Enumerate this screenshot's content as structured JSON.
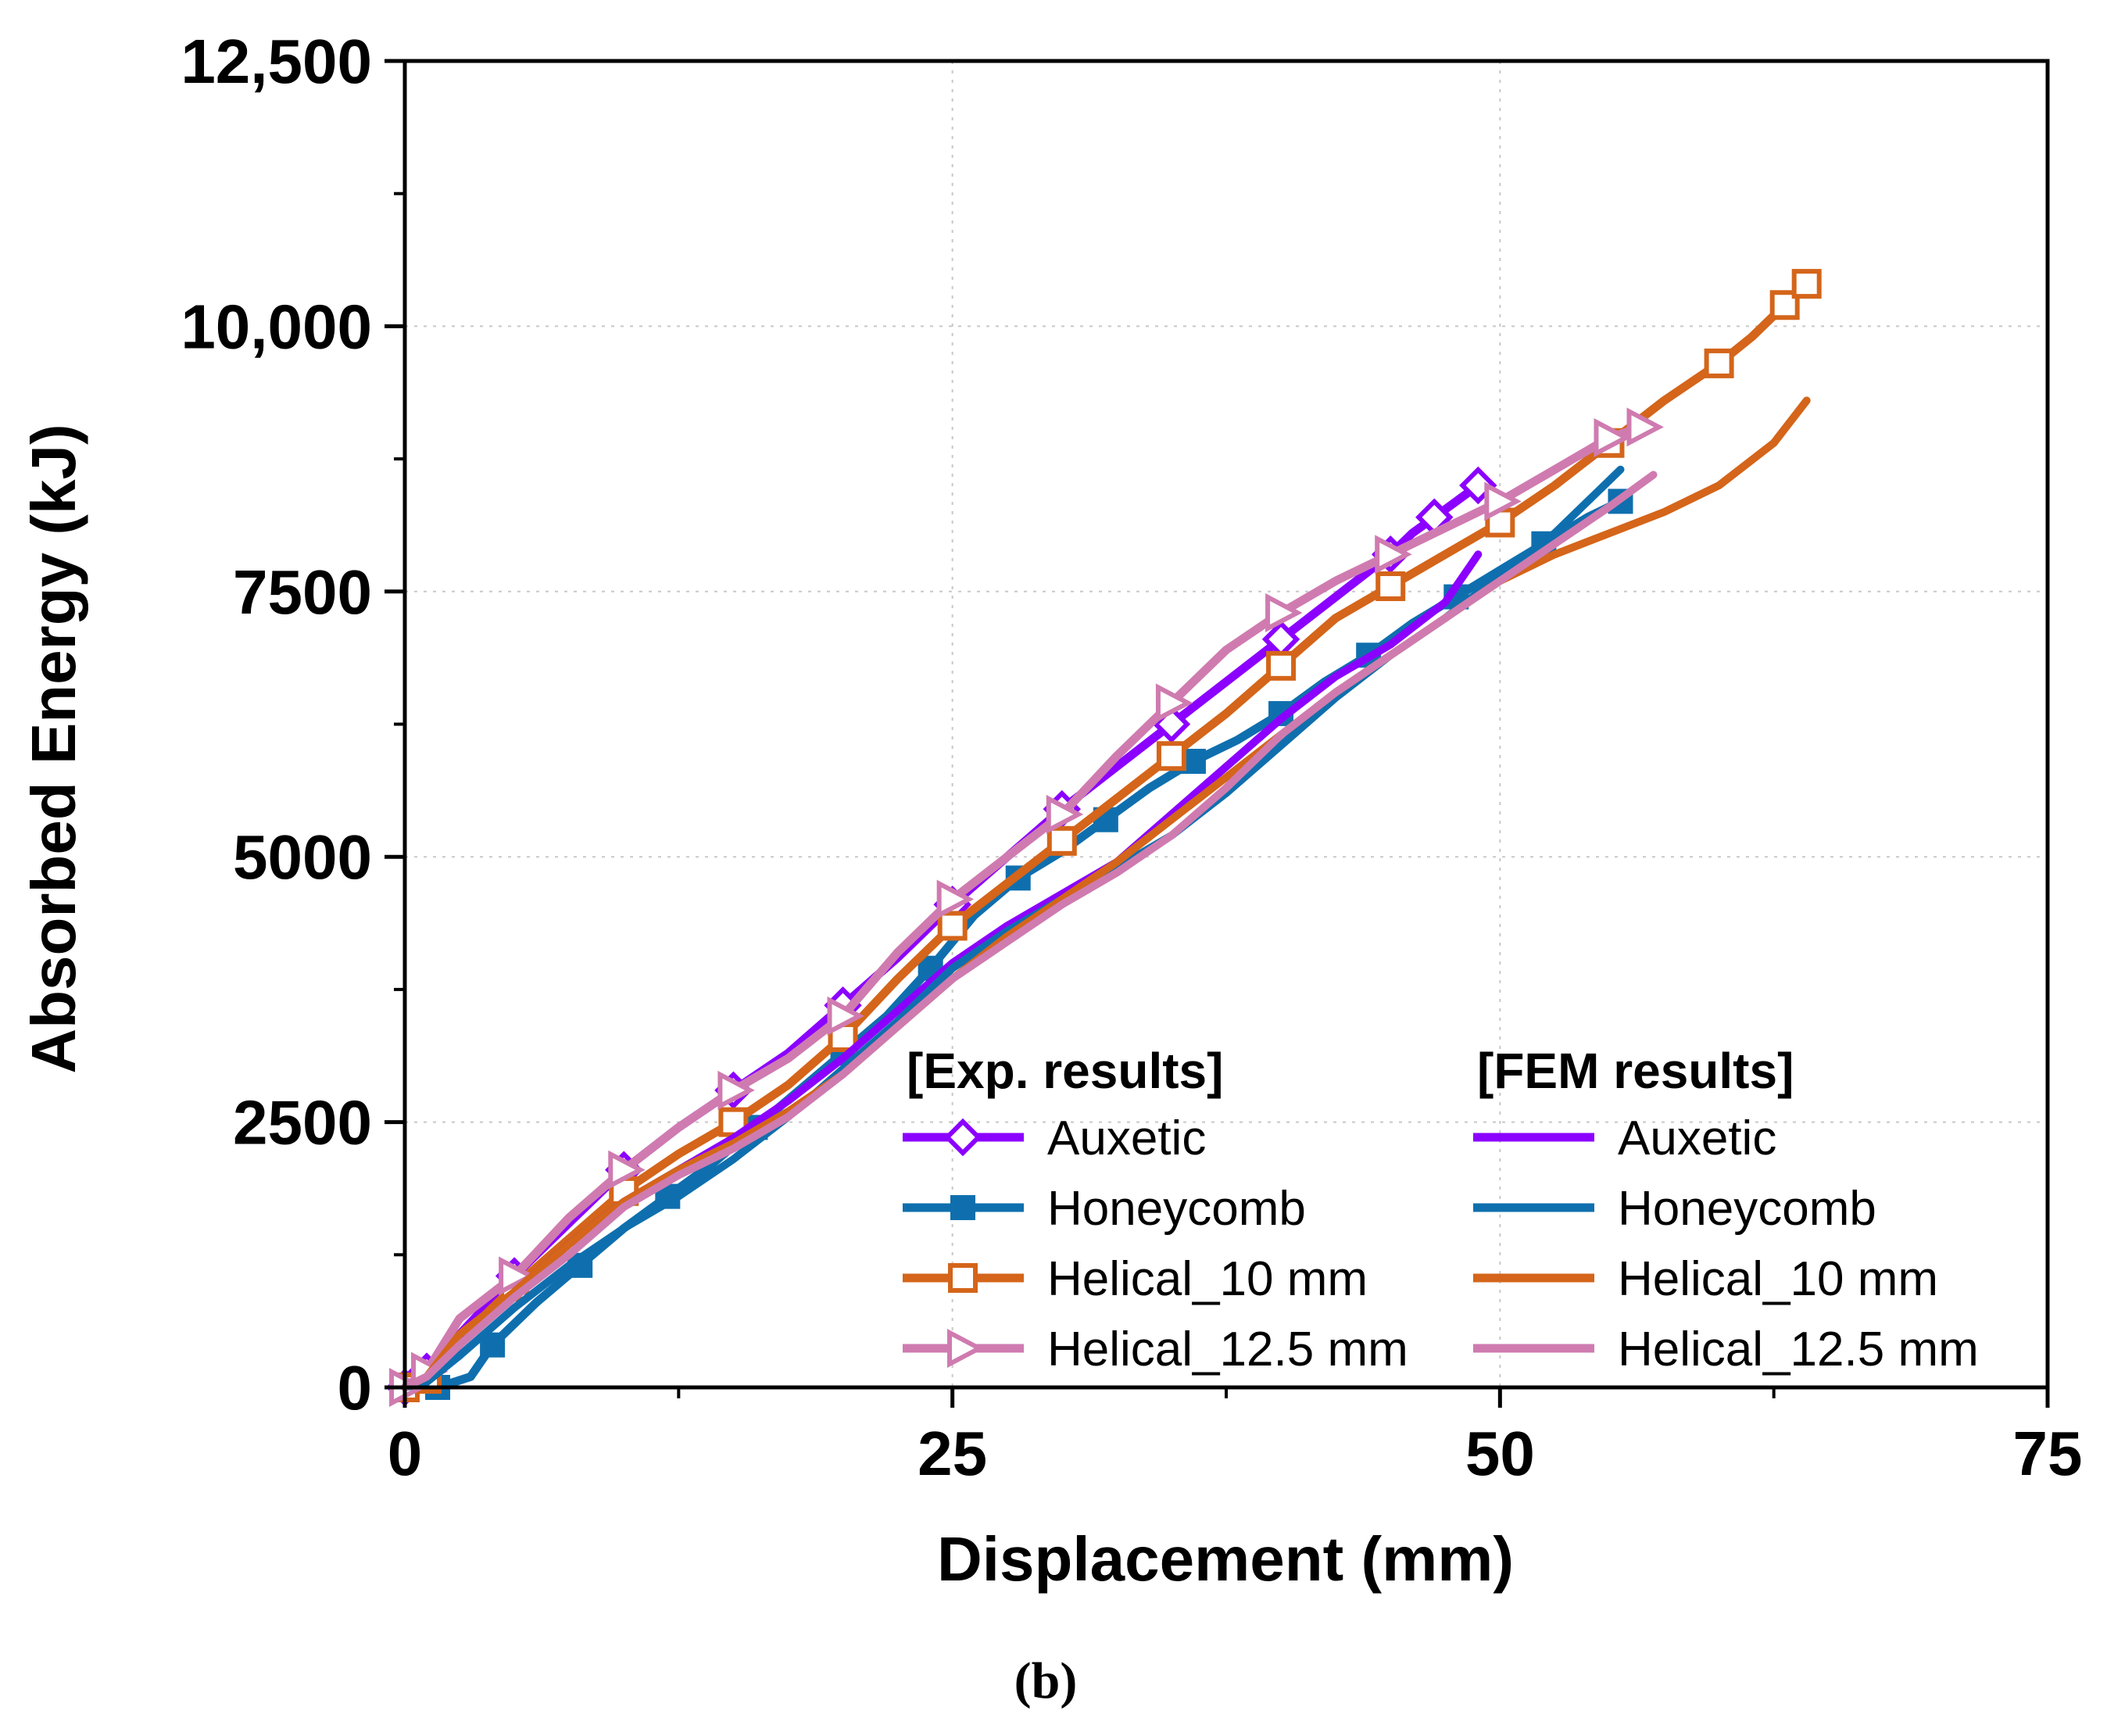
{
  "caption": "(b)",
  "legend": {
    "exp_header": "[Exp. results]",
    "fem_header": "[FEM results]"
  },
  "colors": {
    "Auxetic": "#8B00FF",
    "Honeycomb": "#0F6FAE",
    "Helical_10 mm": "#D4651A",
    "Helical_12.5 mm": "#CF7BB0"
  },
  "chart_data": {
    "type": "line",
    "xlabel": "Displacement (mm)",
    "ylabel": "Absorbed Energy (kJ)",
    "xlim": [
      0,
      75
    ],
    "ylim": [
      0,
      12500
    ],
    "x_ticks": [
      0,
      25,
      50,
      75
    ],
    "x_tick_labels": [
      "0",
      "25",
      "50",
      "75"
    ],
    "y_ticks": [
      0,
      2500,
      5000,
      7500,
      10000,
      12500
    ],
    "y_tick_labels": [
      "0",
      "2500",
      "5000",
      "7500",
      "10,000",
      "12,500"
    ],
    "grid": true,
    "series": [
      {
        "name": "Auxetic",
        "group": "exp",
        "marker": "diamond-open",
        "x": [
          0,
          1,
          2.5,
          5,
          7.5,
          10,
          12.5,
          15,
          17.5,
          20,
          22.5,
          25,
          27.5,
          30,
          32.5,
          35,
          37.5,
          40,
          42.5,
          45,
          46,
          47,
          48,
          49
        ],
        "y": [
          0,
          150,
          500,
          1050,
          1550,
          2050,
          2450,
          2800,
          3150,
          3600,
          4050,
          4550,
          5000,
          5450,
          5850,
          6250,
          6650,
          7050,
          7450,
          7850,
          8050,
          8200,
          8350,
          8500
        ]
      },
      {
        "name": "Honeycomb",
        "group": "exp",
        "marker": "square-filled",
        "x": [
          0,
          1.5,
          3,
          4,
          6,
          8,
          10,
          12,
          14,
          16,
          18,
          20,
          22,
          24,
          26,
          28,
          30,
          32,
          34,
          36,
          38,
          40,
          42,
          44,
          46,
          48,
          50,
          52,
          54,
          55.5
        ],
        "y": [
          0,
          0,
          100,
          400,
          800,
          1150,
          1500,
          1800,
          2100,
          2450,
          2800,
          3150,
          3500,
          3950,
          4450,
          4800,
          5050,
          5350,
          5650,
          5900,
          6100,
          6350,
          6650,
          6900,
          7200,
          7450,
          7700,
          7950,
          8200,
          8350
        ]
      },
      {
        "name": "Helical_10 mm",
        "group": "exp",
        "marker": "square-open",
        "x": [
          0,
          1,
          2.5,
          5,
          7.5,
          10,
          12.5,
          15,
          17.5,
          20,
          22.5,
          25,
          27.5,
          30,
          32.5,
          35,
          37.5,
          40,
          42.5,
          45,
          47.5,
          50,
          52.5,
          55,
          57.5,
          60,
          61.5,
          63,
          64
        ],
        "y": [
          0,
          80,
          450,
          950,
          1400,
          1850,
          2200,
          2500,
          2850,
          3300,
          3850,
          4350,
          4750,
          5150,
          5550,
          5950,
          6350,
          6800,
          7250,
          7550,
          7850,
          8150,
          8500,
          8900,
          9300,
          9650,
          9900,
          10200,
          10400
        ]
      },
      {
        "name": "Helical_12.5 mm",
        "group": "exp",
        "marker": "triangle-right-open",
        "x": [
          0,
          1,
          2.5,
          5,
          7.5,
          10,
          12.5,
          15,
          17.5,
          20,
          22.5,
          25,
          27.5,
          30,
          32.5,
          35,
          37.5,
          40,
          42.5,
          45,
          47.5,
          50,
          52.5,
          55,
          56.5
        ],
        "y": [
          0,
          150,
          650,
          1050,
          1600,
          2050,
          2450,
          2800,
          3100,
          3500,
          4100,
          4600,
          5000,
          5400,
          5950,
          6450,
          6950,
          7300,
          7600,
          7850,
          8100,
          8350,
          8650,
          8950,
          9050
        ]
      },
      {
        "name": "Auxetic",
        "group": "fem",
        "marker": "none",
        "x": [
          0,
          1,
          2.5,
          5,
          7.5,
          10,
          12.5,
          15,
          17.5,
          20,
          22.5,
          25,
          27.5,
          30,
          32.5,
          35,
          37.5,
          40,
          42.5,
          45,
          47.5,
          49
        ],
        "y": [
          0,
          100,
          400,
          900,
          1350,
          1750,
          2050,
          2350,
          2700,
          3100,
          3550,
          4000,
          4350,
          4650,
          4950,
          5400,
          5850,
          6300,
          6700,
          7000,
          7400,
          7850
        ]
      },
      {
        "name": "Honeycomb",
        "group": "fem",
        "marker": "none",
        "x": [
          0,
          1,
          2.5,
          5,
          7.5,
          10,
          12.5,
          15,
          17.5,
          20,
          22.5,
          25,
          27.5,
          30,
          32.5,
          35,
          37.5,
          40,
          42.5,
          45,
          47.5,
          50,
          52.5,
          55,
          55.5
        ],
        "y": [
          0,
          50,
          300,
          750,
          1150,
          1500,
          1800,
          2150,
          2550,
          3000,
          3450,
          3950,
          4300,
          4600,
          4900,
          5200,
          5600,
          6050,
          6500,
          6900,
          7250,
          7650,
          8050,
          8550,
          8650
        ]
      },
      {
        "name": "Helical_10 mm",
        "group": "fem",
        "marker": "none",
        "x": [
          0,
          1,
          2.5,
          5,
          7.5,
          10,
          12.5,
          15,
          17.5,
          20,
          22.5,
          25,
          27.5,
          30,
          32.5,
          35,
          37.5,
          40,
          42.5,
          45,
          47.5,
          50,
          52.5,
          55,
          57.5,
          60,
          62.5,
          64
        ],
        "y": [
          0,
          100,
          500,
          900,
          1350,
          1750,
          2050,
          2300,
          2600,
          2950,
          3400,
          3850,
          4250,
          4600,
          4950,
          5350,
          5750,
          6150,
          6550,
          6900,
          7250,
          7600,
          7850,
          8050,
          8250,
          8500,
          8900,
          9300
        ]
      },
      {
        "name": "Helical_12.5 mm",
        "group": "fem",
        "marker": "none",
        "x": [
          0,
          1,
          2.5,
          5,
          7.5,
          10,
          12.5,
          15,
          17.5,
          20,
          22.5,
          25,
          27.5,
          30,
          32.5,
          35,
          37.5,
          40,
          42.5,
          45,
          47.5,
          50,
          52.5,
          55,
          57
        ],
        "y": [
          0,
          100,
          400,
          850,
          1250,
          1700,
          2000,
          2250,
          2550,
          2950,
          3400,
          3850,
          4200,
          4550,
          4850,
          5200,
          5650,
          6150,
          6550,
          6900,
          7250,
          7600,
          7950,
          8300,
          8600
        ]
      }
    ]
  }
}
